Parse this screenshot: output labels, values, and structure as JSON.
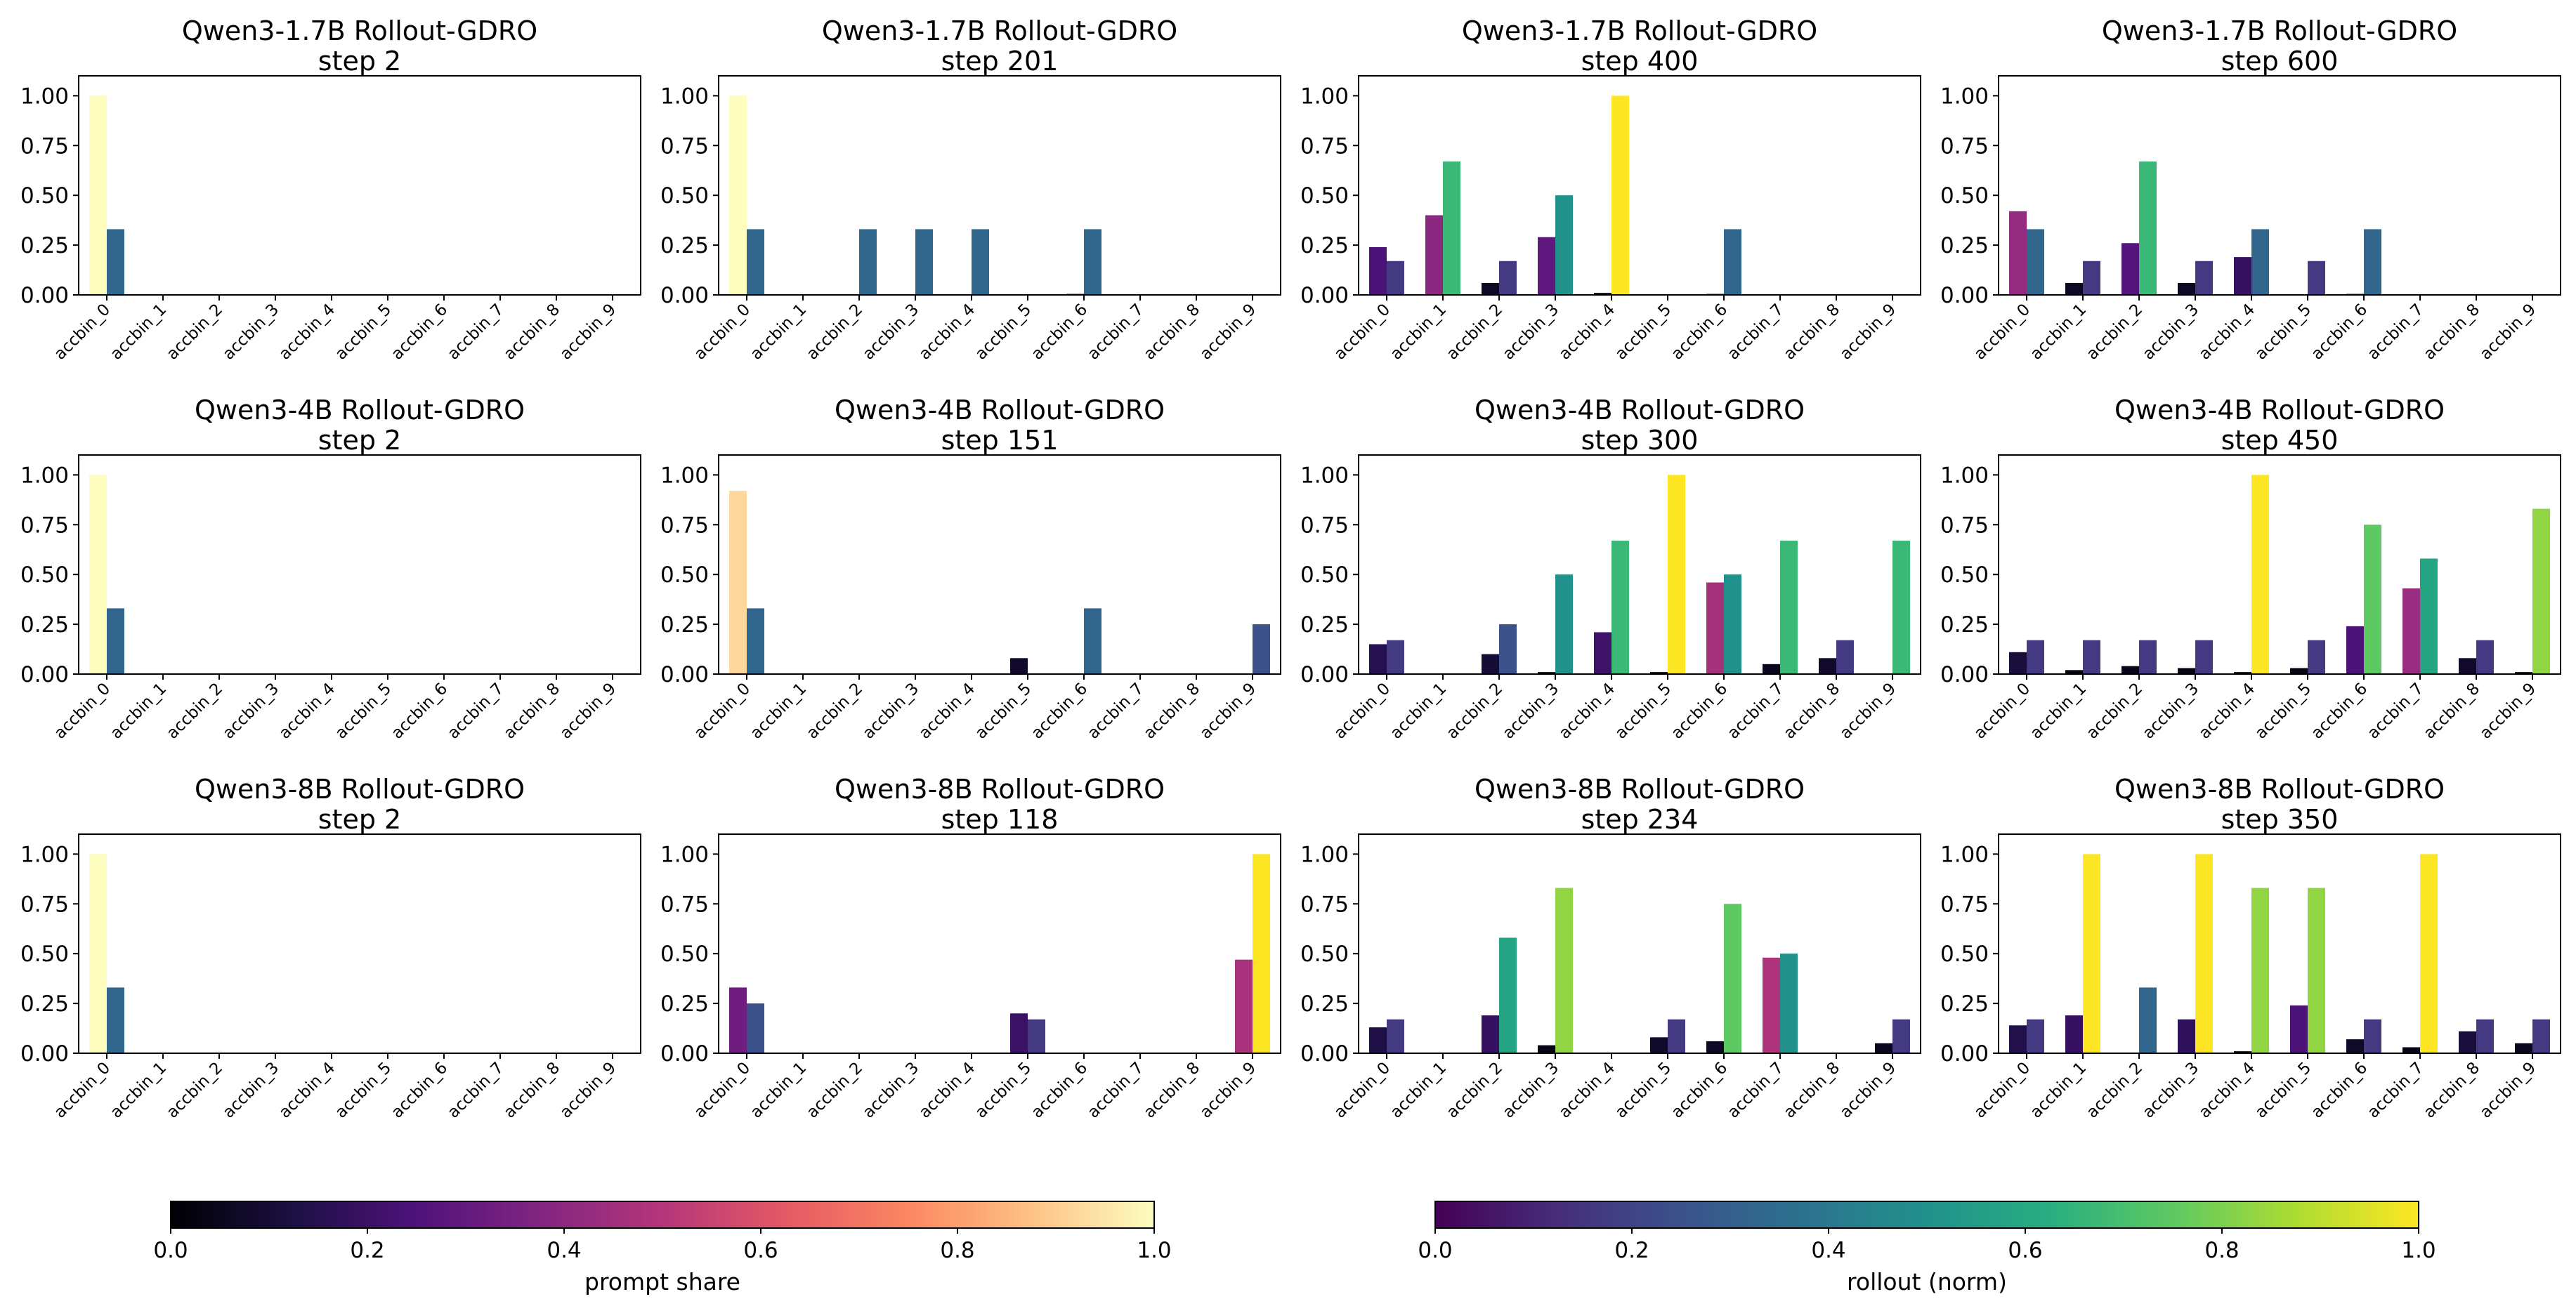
{
  "chart_data": [
    {
      "type": "bar",
      "title": "Qwen3-1.7B Rollout-GDRO",
      "subtitle": "step 2",
      "categories": [
        "accbin_0",
        "accbin_1",
        "accbin_2",
        "accbin_3",
        "accbin_4",
        "accbin_5",
        "accbin_6",
        "accbin_7",
        "accbin_8",
        "accbin_9"
      ],
      "series": [
        {
          "name": "prompt share",
          "values": [
            1.0,
            0,
            0,
            0,
            0,
            0,
            0,
            0,
            0,
            0
          ]
        },
        {
          "name": "rollout (norm)",
          "values": [
            0.33,
            0,
            0,
            0,
            0,
            0,
            0,
            0,
            0,
            0
          ]
        }
      ],
      "ylim": [
        0,
        1.1
      ],
      "yticks": [
        "0.00",
        "0.25",
        "0.50",
        "0.75",
        "1.00"
      ]
    },
    {
      "type": "bar",
      "title": "Qwen3-1.7B Rollout-GDRO",
      "subtitle": "step 201",
      "categories": [
        "accbin_0",
        "accbin_1",
        "accbin_2",
        "accbin_3",
        "accbin_4",
        "accbin_5",
        "accbin_6",
        "accbin_7",
        "accbin_8",
        "accbin_9"
      ],
      "series": [
        {
          "name": "prompt share",
          "values": [
            1.0,
            0,
            0,
            0,
            0,
            0,
            0.005,
            0,
            0,
            0
          ]
        },
        {
          "name": "rollout (norm)",
          "values": [
            0.33,
            0,
            0.33,
            0.33,
            0.33,
            0,
            0.33,
            0,
            0,
            0
          ]
        }
      ],
      "ylim": [
        0,
        1.1
      ],
      "yticks": [
        "0.00",
        "0.25",
        "0.50",
        "0.75",
        "1.00"
      ]
    },
    {
      "type": "bar",
      "title": "Qwen3-1.7B Rollout-GDRO",
      "subtitle": "step 400",
      "categories": [
        "accbin_0",
        "accbin_1",
        "accbin_2",
        "accbin_3",
        "accbin_4",
        "accbin_5",
        "accbin_6",
        "accbin_7",
        "accbin_8",
        "accbin_9"
      ],
      "series": [
        {
          "name": "prompt share",
          "values": [
            0.24,
            0.4,
            0.06,
            0.29,
            0.01,
            0,
            0.005,
            0,
            0,
            0
          ]
        },
        {
          "name": "rollout (norm)",
          "values": [
            0.17,
            0.67,
            0.17,
            0.5,
            1.0,
            0,
            0.33,
            0,
            0,
            0
          ]
        }
      ],
      "ylim": [
        0,
        1.1
      ],
      "yticks": [
        "0.00",
        "0.25",
        "0.50",
        "0.75",
        "1.00"
      ]
    },
    {
      "type": "bar",
      "title": "Qwen3-1.7B Rollout-GDRO",
      "subtitle": "step 600",
      "categories": [
        "accbin_0",
        "accbin_1",
        "accbin_2",
        "accbin_3",
        "accbin_4",
        "accbin_5",
        "accbin_6",
        "accbin_7",
        "accbin_8",
        "accbin_9"
      ],
      "series": [
        {
          "name": "prompt share",
          "values": [
            0.42,
            0.06,
            0.26,
            0.06,
            0.19,
            0,
            0.005,
            0,
            0,
            0
          ]
        },
        {
          "name": "rollout (norm)",
          "values": [
            0.33,
            0.17,
            0.67,
            0.17,
            0.33,
            0.17,
            0.33,
            0,
            0,
            0
          ]
        }
      ],
      "ylim": [
        0,
        1.1
      ],
      "yticks": [
        "0.00",
        "0.25",
        "0.50",
        "0.75",
        "1.00"
      ]
    },
    {
      "type": "bar",
      "title": "Qwen3-4B Rollout-GDRO",
      "subtitle": "step 2",
      "categories": [
        "accbin_0",
        "accbin_1",
        "accbin_2",
        "accbin_3",
        "accbin_4",
        "accbin_5",
        "accbin_6",
        "accbin_7",
        "accbin_8",
        "accbin_9"
      ],
      "series": [
        {
          "name": "prompt share",
          "values": [
            1.0,
            0,
            0,
            0,
            0,
            0,
            0,
            0,
            0,
            0
          ]
        },
        {
          "name": "rollout (norm)",
          "values": [
            0.33,
            0,
            0,
            0,
            0,
            0,
            0,
            0,
            0,
            0
          ]
        }
      ],
      "ylim": [
        0,
        1.1
      ],
      "yticks": [
        "0.00",
        "0.25",
        "0.50",
        "0.75",
        "1.00"
      ]
    },
    {
      "type": "bar",
      "title": "Qwen3-4B Rollout-GDRO",
      "subtitle": "step 151",
      "categories": [
        "accbin_0",
        "accbin_1",
        "accbin_2",
        "accbin_3",
        "accbin_4",
        "accbin_5",
        "accbin_6",
        "accbin_7",
        "accbin_8",
        "accbin_9"
      ],
      "series": [
        {
          "name": "prompt share",
          "values": [
            0.92,
            0,
            0,
            0,
            0,
            0.08,
            0,
            0,
            0,
            0
          ]
        },
        {
          "name": "rollout (norm)",
          "values": [
            0.33,
            0,
            0,
            0,
            0,
            0,
            0.33,
            0,
            0,
            0.25
          ]
        }
      ],
      "ylim": [
        0,
        1.1
      ],
      "yticks": [
        "0.00",
        "0.25",
        "0.50",
        "0.75",
        "1.00"
      ]
    },
    {
      "type": "bar",
      "title": "Qwen3-4B Rollout-GDRO",
      "subtitle": "step 300",
      "categories": [
        "accbin_0",
        "accbin_1",
        "accbin_2",
        "accbin_3",
        "accbin_4",
        "accbin_5",
        "accbin_6",
        "accbin_7",
        "accbin_8",
        "accbin_9"
      ],
      "series": [
        {
          "name": "prompt share",
          "values": [
            0.15,
            0,
            0.1,
            0.01,
            0.21,
            0.01,
            0.46,
            0.05,
            0.08,
            0
          ]
        },
        {
          "name": "rollout (norm)",
          "values": [
            0.17,
            0,
            0.25,
            0.5,
            0.67,
            1.0,
            0.5,
            0.67,
            0.17,
            0.67
          ]
        }
      ],
      "ylim": [
        0,
        1.1
      ],
      "yticks": [
        "0.00",
        "0.25",
        "0.50",
        "0.75",
        "1.00"
      ]
    },
    {
      "type": "bar",
      "title": "Qwen3-4B Rollout-GDRO",
      "subtitle": "step 450",
      "categories": [
        "accbin_0",
        "accbin_1",
        "accbin_2",
        "accbin_3",
        "accbin_4",
        "accbin_5",
        "accbin_6",
        "accbin_7",
        "accbin_8",
        "accbin_9"
      ],
      "series": [
        {
          "name": "prompt share",
          "values": [
            0.11,
            0.02,
            0.04,
            0.03,
            0.01,
            0.03,
            0.24,
            0.43,
            0.08,
            0.01
          ]
        },
        {
          "name": "rollout (norm)",
          "values": [
            0.17,
            0.17,
            0.17,
            0.17,
            1.0,
            0.17,
            0.75,
            0.58,
            0.17,
            0.83
          ]
        }
      ],
      "ylim": [
        0,
        1.1
      ],
      "yticks": [
        "0.00",
        "0.25",
        "0.50",
        "0.75",
        "1.00"
      ]
    },
    {
      "type": "bar",
      "title": "Qwen3-8B Rollout-GDRO",
      "subtitle": "step 2",
      "categories": [
        "accbin_0",
        "accbin_1",
        "accbin_2",
        "accbin_3",
        "accbin_4",
        "accbin_5",
        "accbin_6",
        "accbin_7",
        "accbin_8",
        "accbin_9"
      ],
      "series": [
        {
          "name": "prompt share",
          "values": [
            1.0,
            0,
            0,
            0,
            0,
            0,
            0,
            0,
            0,
            0
          ]
        },
        {
          "name": "rollout (norm)",
          "values": [
            0.33,
            0,
            0,
            0,
            0,
            0,
            0,
            0,
            0,
            0
          ]
        }
      ],
      "ylim": [
        0,
        1.1
      ],
      "yticks": [
        "0.00",
        "0.25",
        "0.50",
        "0.75",
        "1.00"
      ]
    },
    {
      "type": "bar",
      "title": "Qwen3-8B Rollout-GDRO",
      "subtitle": "step 118",
      "categories": [
        "accbin_0",
        "accbin_1",
        "accbin_2",
        "accbin_3",
        "accbin_4",
        "accbin_5",
        "accbin_6",
        "accbin_7",
        "accbin_8",
        "accbin_9"
      ],
      "series": [
        {
          "name": "prompt share",
          "values": [
            0.33,
            0,
            0,
            0,
            0,
            0.2,
            0,
            0,
            0,
            0.47
          ]
        },
        {
          "name": "rollout (norm)",
          "values": [
            0.25,
            0,
            0,
            0,
            0,
            0.17,
            0,
            0,
            0,
            1.0
          ]
        }
      ],
      "ylim": [
        0,
        1.1
      ],
      "yticks": [
        "0.00",
        "0.25",
        "0.50",
        "0.75",
        "1.00"
      ]
    },
    {
      "type": "bar",
      "title": "Qwen3-8B Rollout-GDRO",
      "subtitle": "step 234",
      "categories": [
        "accbin_0",
        "accbin_1",
        "accbin_2",
        "accbin_3",
        "accbin_4",
        "accbin_5",
        "accbin_6",
        "accbin_7",
        "accbin_8",
        "accbin_9"
      ],
      "series": [
        {
          "name": "prompt share",
          "values": [
            0.13,
            0,
            0.19,
            0.04,
            0,
            0.08,
            0.06,
            0.48,
            0,
            0.05
          ]
        },
        {
          "name": "rollout (norm)",
          "values": [
            0.17,
            0,
            0.58,
            0.83,
            0,
            0.17,
            0.75,
            0.5,
            0,
            0.17
          ]
        }
      ],
      "ylim": [
        0,
        1.1
      ],
      "yticks": [
        "0.00",
        "0.25",
        "0.50",
        "0.75",
        "1.00"
      ]
    },
    {
      "type": "bar",
      "title": "Qwen3-8B Rollout-GDRO",
      "subtitle": "step 350",
      "categories": [
        "accbin_0",
        "accbin_1",
        "accbin_2",
        "accbin_3",
        "accbin_4",
        "accbin_5",
        "accbin_6",
        "accbin_7",
        "accbin_8",
        "accbin_9"
      ],
      "series": [
        {
          "name": "prompt share",
          "values": [
            0.14,
            0.19,
            0,
            0.17,
            0.01,
            0.24,
            0.07,
            0.03,
            0.11,
            0.05
          ]
        },
        {
          "name": "rollout (norm)",
          "values": [
            0.17,
            1.0,
            0.33,
            1.0,
            0.83,
            0.83,
            0.17,
            1.0,
            0.17,
            0.17
          ]
        }
      ],
      "ylim": [
        0,
        1.1
      ],
      "yticks": [
        "0.00",
        "0.25",
        "0.50",
        "0.75",
        "1.00"
      ]
    }
  ],
  "colorbars": [
    {
      "label": "prompt share",
      "colormap": "magma",
      "range": [
        0,
        1
      ],
      "ticks": [
        "0.0",
        "0.2",
        "0.4",
        "0.6",
        "0.8",
        "1.0"
      ]
    },
    {
      "label": "rollout (norm)",
      "colormap": "viridis",
      "range": [
        0,
        1
      ],
      "ticks": [
        "0.0",
        "0.2",
        "0.4",
        "0.6",
        "0.8",
        "1.0"
      ]
    }
  ],
  "colormaps": {
    "magma": [
      "#000004",
      "#1c1044",
      "#4f127b",
      "#812581",
      "#b5367a",
      "#e55964",
      "#fb8761",
      "#fec287",
      "#fcfdbf"
    ],
    "viridis": [
      "#440154",
      "#472d7b",
      "#3b528b",
      "#2c728e",
      "#21918c",
      "#28ae80",
      "#5ec962",
      "#addc30",
      "#fde725"
    ]
  }
}
